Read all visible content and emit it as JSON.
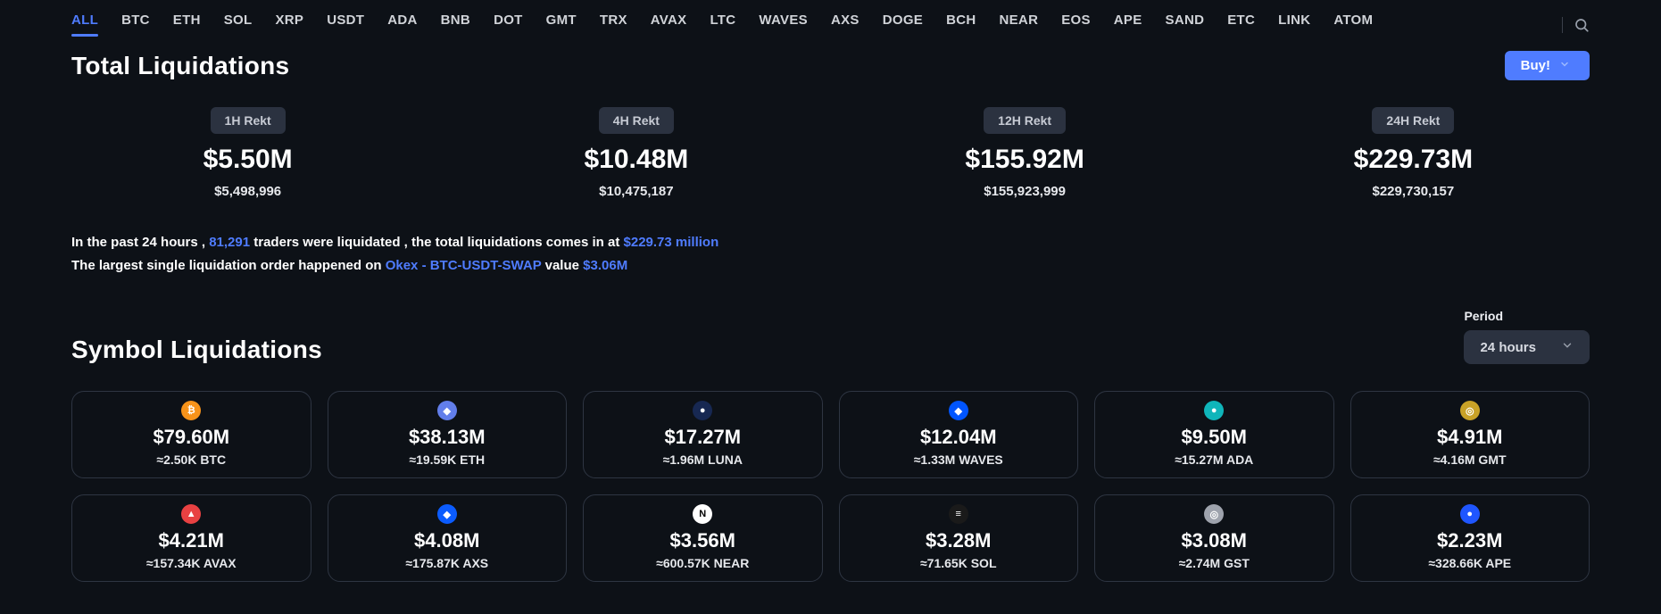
{
  "colors": {
    "background": "#0d1117",
    "text": "#ffffff",
    "accent": "#4f7cff",
    "chip_bg": "#2b3240",
    "card_border": "#2e3542",
    "muted": "#c7cbd4"
  },
  "tabs": {
    "active_index": 0,
    "items": [
      "ALL",
      "BTC",
      "ETH",
      "SOL",
      "XRP",
      "USDT",
      "ADA",
      "BNB",
      "DOT",
      "GMT",
      "TRX",
      "AVAX",
      "LTC",
      "WAVES",
      "AXS",
      "DOGE",
      "BCH",
      "NEAR",
      "EOS",
      "APE",
      "SAND",
      "ETC",
      "LINK",
      "ATOM"
    ]
  },
  "buy_button": {
    "label": "Buy!"
  },
  "sections": {
    "total_title": "Total Liquidations",
    "symbol_title": "Symbol Liquidations"
  },
  "totals": [
    {
      "chip": "1H Rekt",
      "value": "$5.50M",
      "sub": "$5,498,996"
    },
    {
      "chip": "4H Rekt",
      "value": "$10.48M",
      "sub": "$10,475,187"
    },
    {
      "chip": "12H Rekt",
      "value": "$155.92M",
      "sub": "$155,923,999"
    },
    {
      "chip": "24H Rekt",
      "value": "$229.73M",
      "sub": "$229,730,157"
    }
  ],
  "summary": {
    "line1_pre": "In the past 24 hours , ",
    "traders_count": "81,291",
    "line1_mid": " traders were liquidated , the total liquidations comes in at ",
    "total_amount": "$229.73 million",
    "line2_pre": "The largest single liquidation order happened on ",
    "exchange_pair": "Okex - BTC-USDT-SWAP",
    "line2_mid": " value ",
    "largest_value": "$3.06M"
  },
  "period": {
    "label": "Period",
    "selected": "24 hours"
  },
  "symbols": [
    {
      "amount": "$79.60M",
      "approx": "≈2.50K BTC",
      "icon_bg": "#f7931a",
      "icon_glyph": "₿"
    },
    {
      "amount": "$38.13M",
      "approx": "≈19.59K ETH",
      "icon_bg": "#627eea",
      "icon_glyph": "◆"
    },
    {
      "amount": "$17.27M",
      "approx": "≈1.96M LUNA",
      "icon_bg": "#172852",
      "icon_glyph": "●"
    },
    {
      "amount": "$12.04M",
      "approx": "≈1.33M WAVES",
      "icon_bg": "#0055ff",
      "icon_glyph": "◆"
    },
    {
      "amount": "$9.50M",
      "approx": "≈15.27M ADA",
      "icon_bg": "#0fb5ba",
      "icon_glyph": "●"
    },
    {
      "amount": "$4.91M",
      "approx": "≈4.16M GMT",
      "icon_bg": "#c9a227",
      "icon_glyph": "◎"
    },
    {
      "amount": "$4.21M",
      "approx": "≈157.34K AVAX",
      "icon_bg": "#e84142",
      "icon_glyph": "▲"
    },
    {
      "amount": "$4.08M",
      "approx": "≈175.87K AXS",
      "icon_bg": "#0b5cff",
      "icon_glyph": "◆"
    },
    {
      "amount": "$3.56M",
      "approx": "≈600.57K NEAR",
      "icon_bg": "#ffffff",
      "icon_glyph": "N"
    },
    {
      "amount": "$3.28M",
      "approx": "≈71.65K SOL",
      "icon_bg": "#1a1a1a",
      "icon_glyph": "≡"
    },
    {
      "amount": "$3.08M",
      "approx": "≈2.74M GST",
      "icon_bg": "#9ea3ad",
      "icon_glyph": "◎"
    },
    {
      "amount": "$2.23M",
      "approx": "≈328.66K APE",
      "icon_bg": "#1f56ff",
      "icon_glyph": "●"
    }
  ]
}
